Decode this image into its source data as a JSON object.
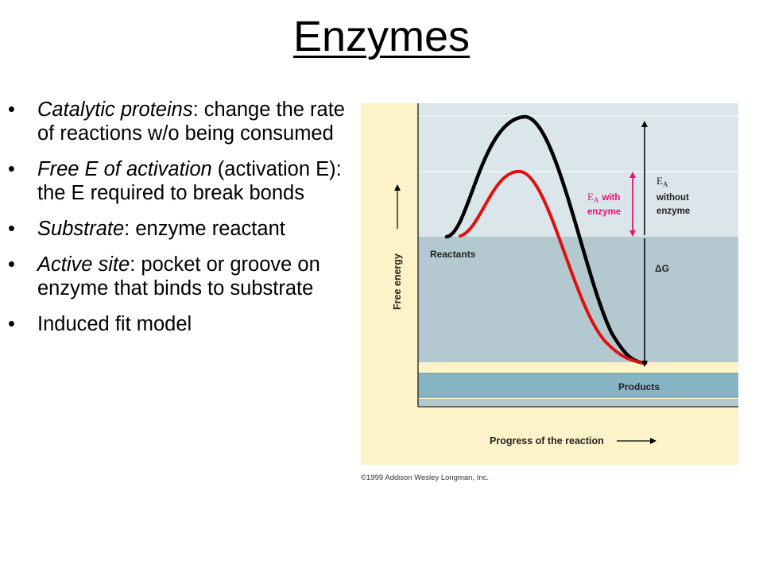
{
  "title": "Enzymes",
  "bullets": [
    {
      "term": "Catalytic proteins",
      "rest": ": change the rate of reactions w/o being consumed"
    },
    {
      "term": "Free E of activation",
      "rest": " (activation E): the E required to break bonds"
    },
    {
      "term": "Substrate",
      "rest": ": enzyme reactant"
    },
    {
      "term": "Active site",
      "rest": ": pocket or groove on enzyme that binds to substrate"
    },
    {
      "term": "",
      "rest": "Induced fit model"
    }
  ],
  "figure": {
    "y_axis_label": "Free energy",
    "x_axis_label": "Progress of the reaction",
    "reactants_label": "Reactants",
    "products_label": "Products",
    "ea_without_symbol": "E",
    "ea_without_sub": "A",
    "ea_without_line1": "without",
    "ea_without_line2": "enzyme",
    "ea_with_symbol": "E",
    "ea_with_sub": "A",
    "ea_with_line1": "with",
    "ea_with_line2": "enzyme",
    "delta_g_label": "ΔG",
    "copyright": "©1999 Addison Wesley Longman, Inc.",
    "colors": {
      "panel_cream": "#fdf3c8",
      "band_light": "#dbe6eb",
      "band_mid": "#b4c8cf",
      "products_band": "#87b4c3",
      "curve_without_enzyme": "#000000",
      "curve_with_enzyme": "#e01010",
      "ea_with_arrow": "#e5137a"
    }
  }
}
